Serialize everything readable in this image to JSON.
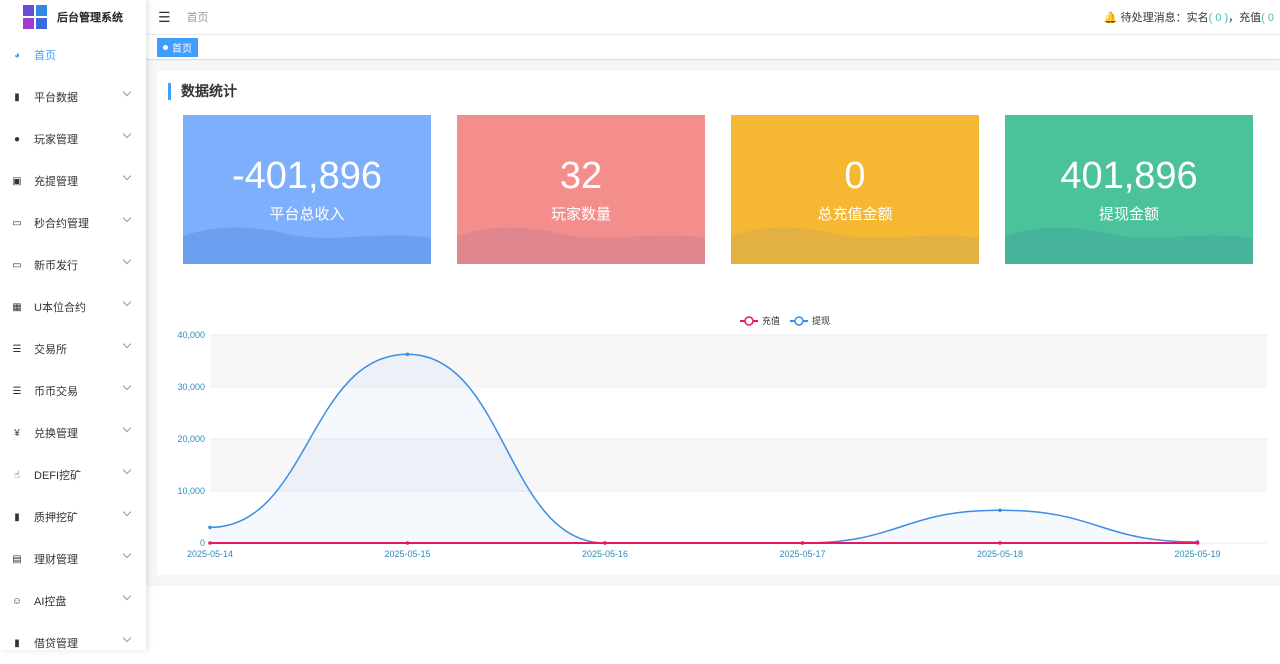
{
  "app": {
    "title": "后台管理系统"
  },
  "sidebar": {
    "items": [
      {
        "label": "首页",
        "icon": "dashboard-icon",
        "glyph": "◕",
        "active": true
      },
      {
        "label": "平台数据",
        "icon": "book-icon",
        "glyph": "▮"
      },
      {
        "label": "玩家管理",
        "icon": "user-icon",
        "glyph": "●"
      },
      {
        "label": "充提管理",
        "icon": "copy-icon",
        "glyph": "▣"
      },
      {
        "label": "秒合约管理",
        "icon": "monitor-icon",
        "glyph": "▭"
      },
      {
        "label": "新币发行",
        "icon": "card-icon",
        "glyph": "▭"
      },
      {
        "label": "U本位合约",
        "icon": "table-icon",
        "glyph": "▦"
      },
      {
        "label": "交易所",
        "icon": "list-icon",
        "glyph": "☰"
      },
      {
        "label": "币币交易",
        "icon": "list-icon",
        "glyph": "☰"
      },
      {
        "label": "兑换管理",
        "icon": "yen-icon",
        "glyph": "¥"
      },
      {
        "label": "DEFI挖矿",
        "icon": "hand-icon",
        "glyph": "☝"
      },
      {
        "label": "质押挖矿",
        "icon": "bar-chart-icon",
        "glyph": "▮"
      },
      {
        "label": "理财管理",
        "icon": "document-icon",
        "glyph": "▤"
      },
      {
        "label": "AI控盘",
        "icon": "robot-icon",
        "glyph": "☺"
      },
      {
        "label": "借贷管理",
        "icon": "book-icon",
        "glyph": "▮"
      }
    ]
  },
  "header": {
    "breadcrumb": "首页",
    "notice_prefix": "待处理消息：实名",
    "notice_count1": "( 0 )",
    "notice_mid": "，充值",
    "notice_count2": "( 0"
  },
  "tags": [
    "首页"
  ],
  "section_title": "数据统计",
  "cards": [
    {
      "value": "-401,896",
      "label": "平台总收入",
      "color": "#7eaffc",
      "wave": "#6c9ff0"
    },
    {
      "value": "32",
      "label": "玩家数量",
      "color": "#f48e8c",
      "wave": "#e0868e"
    },
    {
      "value": "0",
      "label": "总充值金额",
      "color": "#f6b732",
      "wave": "#e3b042"
    },
    {
      "value": "401,896",
      "label": "提现金额",
      "color": "#4bc29c",
      "wave": "#45b49b"
    }
  ],
  "chart_data": {
    "type": "line",
    "x": [
      "2025-05-14",
      "2025-05-15",
      "2025-05-16",
      "2025-05-17",
      "2025-05-18",
      "2025-05-19"
    ],
    "series": [
      {
        "name": "充值",
        "values": [
          0,
          0,
          0,
          0,
          0,
          0
        ],
        "color": "#e5195f"
      },
      {
        "name": "提现",
        "values": [
          3000,
          36300,
          0,
          0,
          6300,
          200
        ],
        "color": "#3a8ee6"
      }
    ],
    "ylim": [
      0,
      40000
    ],
    "yticks": [
      "0",
      "10,000",
      "20,000",
      "30,000",
      "40,000"
    ],
    "legend": "top-center",
    "smooth": true
  }
}
